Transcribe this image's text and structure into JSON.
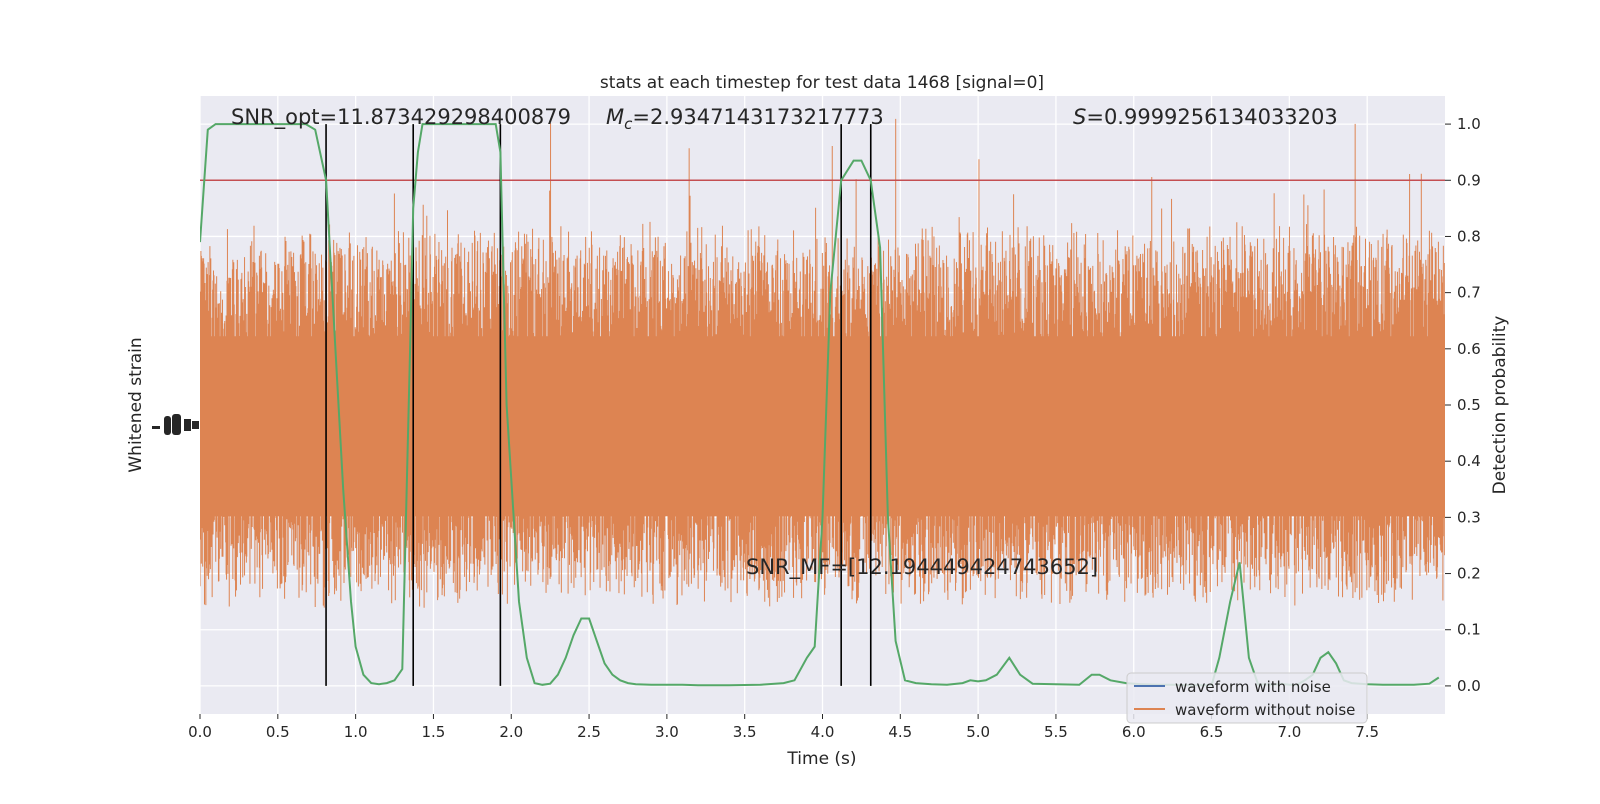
{
  "chart_data": {
    "type": "line",
    "title": "stats at each timestep for test data 1468 [signal=0]",
    "xlabel": "Time (s)",
    "ylabel_left": "Whitened strain",
    "ylabel_right": "Detection probability",
    "xlim": [
      0.0,
      8.0
    ],
    "ylim_right": [
      -0.05,
      1.05
    ],
    "x_ticks": [
      "0.0",
      "0.5",
      "1.0",
      "1.5",
      "2.0",
      "2.5",
      "3.0",
      "3.5",
      "4.0",
      "4.5",
      "5.0",
      "5.5",
      "6.0",
      "6.5",
      "7.0",
      "7.5"
    ],
    "x_tick_values": [
      0.0,
      0.5,
      1.0,
      1.5,
      2.0,
      2.5,
      3.0,
      3.5,
      4.0,
      4.5,
      5.0,
      5.5,
      6.0,
      6.5,
      7.0,
      7.5
    ],
    "y_ticks_right": [
      "0.0",
      "0.1",
      "0.2",
      "0.3",
      "0.4",
      "0.5",
      "0.6",
      "0.7",
      "0.8",
      "0.9",
      "1.0"
    ],
    "y_tick_values_right": [
      0.0,
      0.1,
      0.2,
      0.3,
      0.4,
      0.5,
      0.6,
      0.7,
      0.8,
      0.9,
      1.0
    ],
    "grid": true,
    "annotations": {
      "snr_opt": "SNR_opt=11.873429298400879",
      "mc_label": "M",
      "mc_sub": "c",
      "mc_value": "=2.9347143173217773",
      "s_label": "S",
      "s_value": "=0.9999256134033203",
      "snr_mf": "SNR_MF=[12.194449424743652]"
    },
    "threshold": 0.9,
    "vertical_lines_x": [
      0.81,
      1.37,
      1.93,
      4.12,
      4.31
    ],
    "legend": {
      "placement": "lower-right",
      "entries": [
        {
          "label": "waveform with noise",
          "color": "#4c72b0"
        },
        {
          "label": "waveform without noise",
          "color": "#dd8452"
        }
      ]
    },
    "colors": {
      "strain": "#dd8452",
      "probability": "#55a868",
      "threshold": "#c44e52",
      "vlines": "#000000",
      "plot_bg": "#eaeaf2",
      "grid": "#ffffff"
    },
    "series": [
      {
        "name": "Detection probability",
        "x": [
          0.0,
          0.05,
          0.1,
          0.2,
          0.3,
          0.4,
          0.5,
          0.6,
          0.68,
          0.74,
          0.81,
          0.87,
          0.92,
          0.97,
          1.0,
          1.05,
          1.1,
          1.15,
          1.2,
          1.25,
          1.3,
          1.35,
          1.37,
          1.4,
          1.43,
          1.47,
          1.55,
          1.65,
          1.75,
          1.85,
          1.9,
          1.93,
          1.97,
          2.05,
          2.1,
          2.15,
          2.2,
          2.25,
          2.3,
          2.35,
          2.4,
          2.45,
          2.5,
          2.55,
          2.6,
          2.65,
          2.7,
          2.75,
          2.8,
          2.9,
          3.0,
          3.1,
          3.2,
          3.4,
          3.6,
          3.75,
          3.82,
          3.9,
          3.95,
          4.0,
          4.05,
          4.12,
          4.2,
          4.25,
          4.31,
          4.37,
          4.42,
          4.47,
          4.53,
          4.6,
          4.7,
          4.8,
          4.9,
          4.95,
          5.0,
          5.05,
          5.12,
          5.2,
          5.27,
          5.35,
          5.5,
          5.65,
          5.73,
          5.78,
          5.85,
          5.95,
          6.05,
          6.15,
          6.25,
          6.35,
          6.5,
          6.55,
          6.62,
          6.68,
          6.74,
          6.8,
          6.85,
          6.9,
          6.95,
          7.0,
          7.05,
          7.1,
          7.15,
          7.2,
          7.25,
          7.3,
          7.35,
          7.4,
          7.5,
          7.6,
          7.7,
          7.8,
          7.9,
          7.96
        ],
        "y": [
          0.79,
          0.99,
          1.0,
          1.0,
          1.0,
          1.0,
          1.0,
          1.0,
          1.0,
          0.99,
          0.9,
          0.6,
          0.35,
          0.15,
          0.07,
          0.02,
          0.005,
          0.003,
          0.005,
          0.01,
          0.03,
          0.6,
          0.85,
          0.95,
          1.0,
          1.0,
          1.0,
          1.0,
          1.0,
          1.0,
          1.0,
          0.95,
          0.5,
          0.15,
          0.05,
          0.005,
          0.002,
          0.004,
          0.02,
          0.05,
          0.09,
          0.12,
          0.12,
          0.08,
          0.04,
          0.02,
          0.01,
          0.005,
          0.003,
          0.002,
          0.002,
          0.002,
          0.001,
          0.001,
          0.002,
          0.005,
          0.01,
          0.05,
          0.07,
          0.3,
          0.7,
          0.9,
          0.935,
          0.935,
          0.9,
          0.78,
          0.3,
          0.08,
          0.01,
          0.005,
          0.003,
          0.002,
          0.005,
          0.01,
          0.008,
          0.01,
          0.02,
          0.05,
          0.02,
          0.004,
          0.003,
          0.002,
          0.02,
          0.02,
          0.01,
          0.005,
          0.003,
          0.002,
          0.002,
          0.001,
          0.001,
          0.05,
          0.15,
          0.22,
          0.05,
          0.002,
          0.003,
          0.002,
          0.004,
          0.002,
          0.002,
          0.01,
          0.02,
          0.05,
          0.06,
          0.04,
          0.01,
          0.005,
          0.003,
          0.002,
          0.002,
          0.002,
          0.004,
          0.015
        ]
      }
    ]
  }
}
